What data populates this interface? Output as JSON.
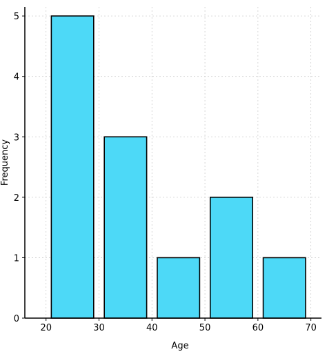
{
  "chart_data": {
    "type": "bar",
    "xlabel": "Age",
    "ylabel": "Frequency",
    "bins": [
      {
        "start": 21,
        "end": 29,
        "value": 5
      },
      {
        "start": 31,
        "end": 39,
        "value": 3
      },
      {
        "start": 41,
        "end": 49,
        "value": 1
      },
      {
        "start": 51,
        "end": 59,
        "value": 2
      },
      {
        "start": 61,
        "end": 69,
        "value": 1
      }
    ],
    "xlim": [
      20,
      70
    ],
    "ylim": [
      0,
      5
    ],
    "xticks": [
      20,
      30,
      40,
      50,
      60,
      70
    ],
    "yticks": [
      0,
      1,
      2,
      3,
      4,
      5
    ],
    "grid": true,
    "bar_color": "#4dd9f7",
    "edge_color": "#000000"
  }
}
